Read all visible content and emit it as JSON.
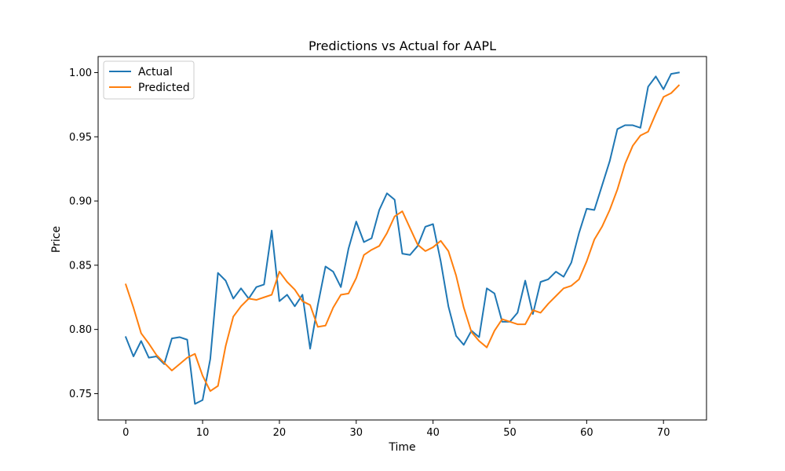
{
  "chart_data": {
    "type": "line",
    "title": "Predictions vs Actual for AAPL",
    "xlabel": "Time",
    "ylabel": "Price",
    "xlim": [
      -3.6,
      75.6
    ],
    "ylim": [
      0.7295,
      1.0125
    ],
    "x_ticks": [
      0,
      10,
      20,
      30,
      40,
      50,
      60,
      70
    ],
    "y_ticks": [
      0.75,
      0.8,
      0.85,
      0.9,
      0.95,
      1.0
    ],
    "y_tick_labels": [
      "0.75",
      "0.80",
      "0.85",
      "0.90",
      "0.95",
      "1.00"
    ],
    "grid": false,
    "legend": "upper-left",
    "series": [
      {
        "name": "Actual",
        "color": "#1f77b4",
        "values": [
          0.794,
          0.779,
          0.791,
          0.778,
          0.779,
          0.773,
          0.793,
          0.794,
          0.792,
          0.742,
          0.745,
          0.777,
          0.844,
          0.838,
          0.824,
          0.832,
          0.824,
          0.833,
          0.835,
          0.877,
          0.822,
          0.827,
          0.818,
          0.827,
          0.785,
          0.819,
          0.849,
          0.845,
          0.833,
          0.863,
          0.884,
          0.868,
          0.871,
          0.893,
          0.906,
          0.901,
          0.859,
          0.858,
          0.865,
          0.88,
          0.882,
          0.853,
          0.818,
          0.795,
          0.788,
          0.799,
          0.794,
          0.832,
          0.828,
          0.806,
          0.806,
          0.813,
          0.838,
          0.812,
          0.837,
          0.839,
          0.845,
          0.841,
          0.852,
          0.875,
          0.894,
          0.893,
          0.912,
          0.931,
          0.956,
          0.959,
          0.959,
          0.957,
          0.989,
          0.997,
          0.987,
          0.999,
          1.0
        ]
      },
      {
        "name": "Predicted",
        "color": "#ff7f0e",
        "values": [
          0.835,
          0.817,
          0.797,
          0.789,
          0.78,
          0.774,
          0.768,
          0.773,
          0.778,
          0.781,
          0.764,
          0.752,
          0.756,
          0.787,
          0.81,
          0.818,
          0.824,
          0.823,
          0.825,
          0.827,
          0.845,
          0.837,
          0.831,
          0.822,
          0.819,
          0.802,
          0.803,
          0.817,
          0.827,
          0.828,
          0.84,
          0.858,
          0.862,
          0.865,
          0.875,
          0.888,
          0.892,
          0.879,
          0.866,
          0.861,
          0.864,
          0.869,
          0.861,
          0.842,
          0.817,
          0.798,
          0.791,
          0.786,
          0.799,
          0.808,
          0.806,
          0.804,
          0.804,
          0.815,
          0.813,
          0.82,
          0.826,
          0.832,
          0.834,
          0.839,
          0.853,
          0.87,
          0.88,
          0.893,
          0.909,
          0.929,
          0.943,
          0.951,
          0.954,
          0.968,
          0.981,
          0.984,
          0.99
        ]
      }
    ]
  }
}
